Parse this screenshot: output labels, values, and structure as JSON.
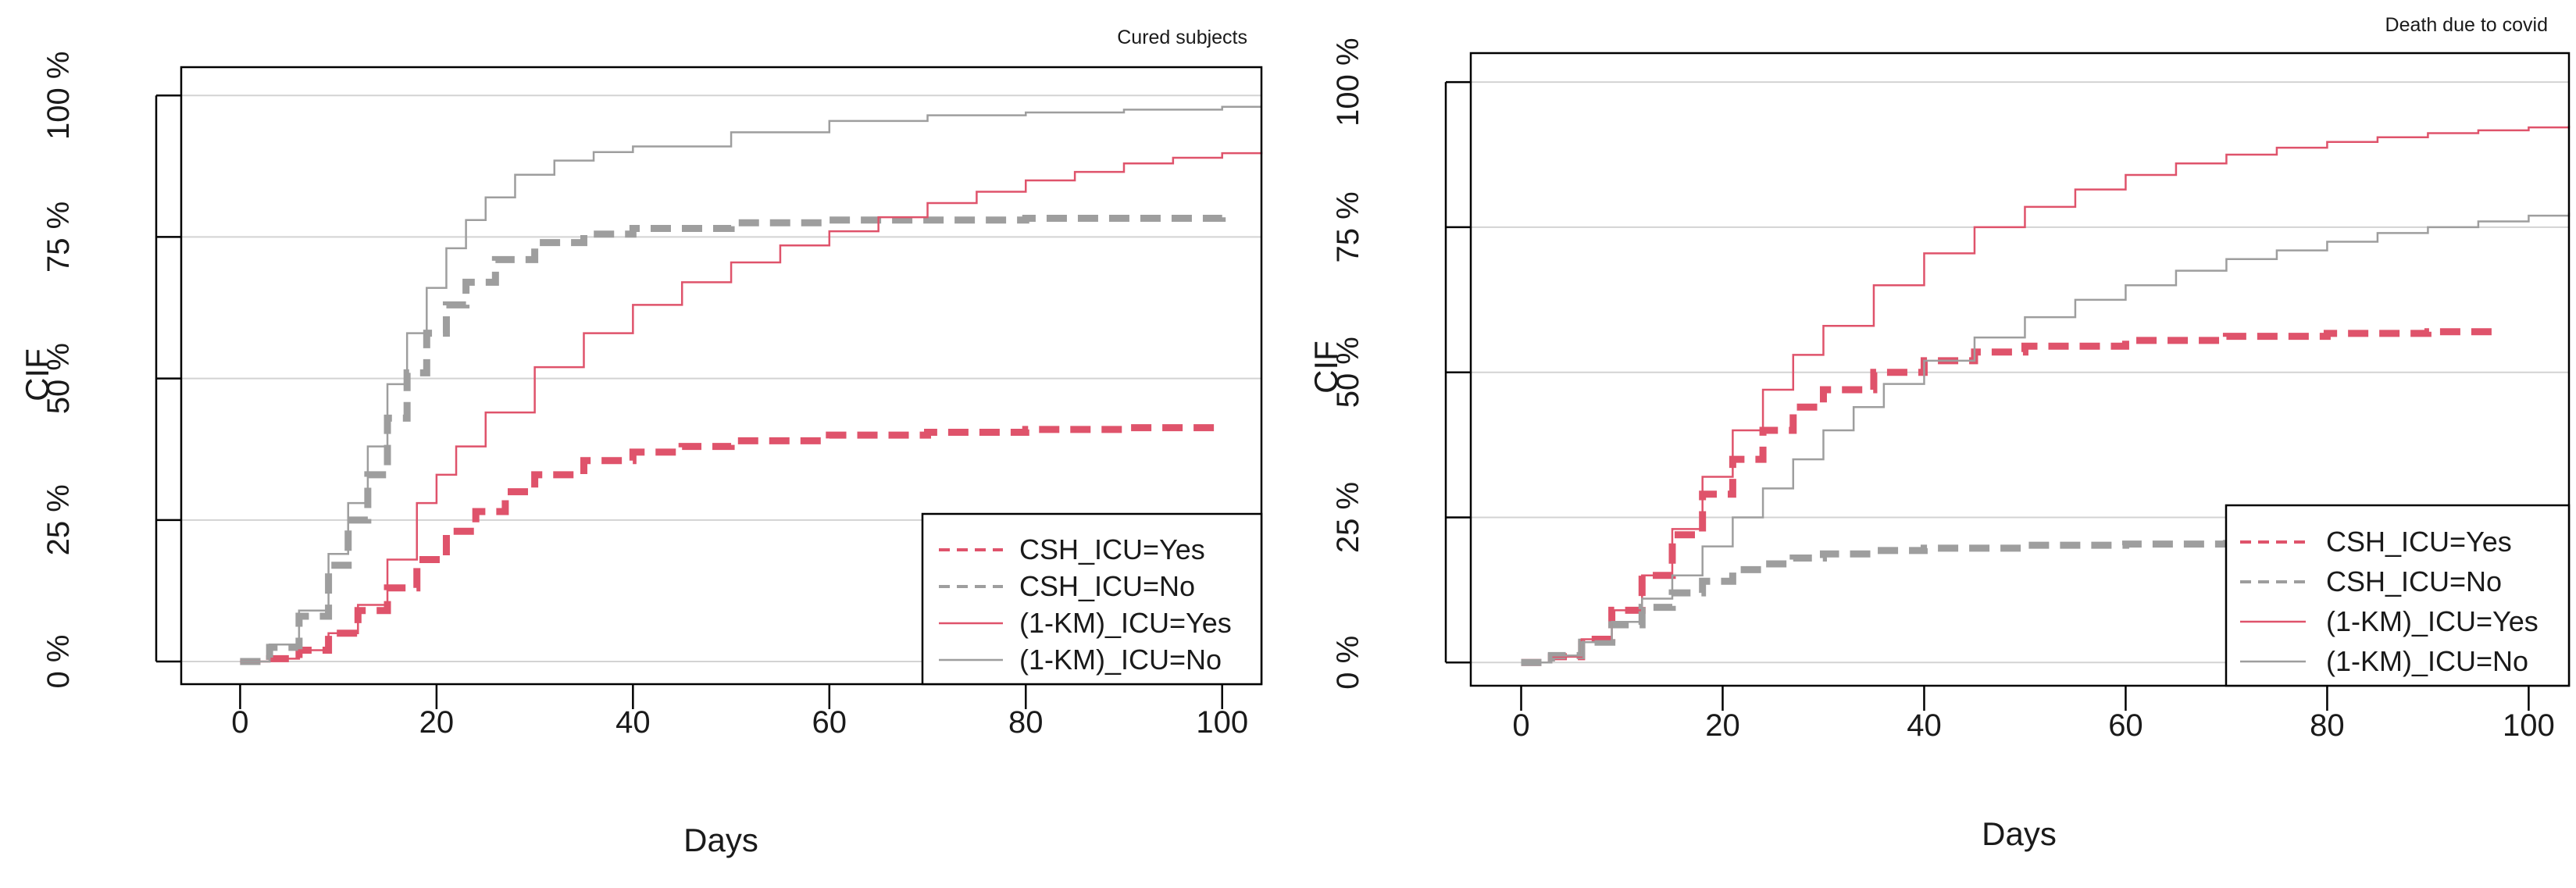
{
  "chart_data": [
    {
      "type": "line",
      "subtype": "step",
      "title": "Cured subjects",
      "xlabel": "Days",
      "ylabel": "CIF",
      "xlim": [
        -6,
        104
      ],
      "ylim": [
        -4,
        105
      ],
      "xticks": [
        0,
        20,
        40,
        60,
        80,
        100
      ],
      "xtick_labels": [
        "0",
        "20",
        "40",
        "60",
        "80",
        "100"
      ],
      "yticks": [
        0,
        25,
        50,
        75,
        100
      ],
      "ytick_labels": [
        "0 %",
        "25 %",
        "50 %",
        "75 %",
        "100 %"
      ],
      "grid": "horizontal",
      "legend_position": "bottom-right",
      "series": [
        {
          "name": "CSH_ICU=Yes",
          "color": "#DF536B",
          "style": "dashed",
          "x": [
            0,
            3,
            6,
            9,
            12,
            15,
            18,
            21,
            24,
            27,
            30,
            35,
            40,
            45,
            50,
            60,
            70,
            80,
            90,
            100
          ],
          "values": [
            0,
            0.5,
            2,
            5,
            9,
            13,
            18,
            23,
            26.5,
            30,
            33,
            35.5,
            37,
            38,
            39,
            40,
            40.5,
            41,
            41.3,
            41.5
          ]
        },
        {
          "name": "CSH_ICU=No",
          "color": "#9E9E9E",
          "style": "dashed",
          "x": [
            0,
            3,
            6,
            9,
            11,
            13,
            15,
            17,
            19,
            21,
            23,
            26,
            30,
            35,
            40,
            50,
            60,
            70,
            80,
            90,
            100
          ],
          "values": [
            0,
            2.5,
            8,
            17,
            25,
            33,
            43,
            51,
            58,
            63,
            67,
            71,
            74,
            75.5,
            76.5,
            77.5,
            78,
            78,
            78.3,
            78.3,
            78.5
          ]
        },
        {
          "name": "(1-KM)_ICU=Yes",
          "color": "#DF536B",
          "style": "solid",
          "x": [
            0,
            3,
            6,
            9,
            12,
            15,
            18,
            20,
            22,
            25,
            30,
            35,
            40,
            45,
            50,
            55,
            60,
            65,
            70,
            75,
            80,
            85,
            90,
            95,
            100,
            104
          ],
          "values": [
            0,
            0.5,
            2,
            5,
            10,
            18,
            28,
            33,
            38,
            44,
            52,
            58,
            63,
            67,
            70.5,
            73.5,
            76,
            78.5,
            81,
            83,
            85,
            86.5,
            88,
            89,
            89.8,
            90
          ]
        },
        {
          "name": "(1-KM)_ICU=No",
          "color": "#9E9E9E",
          "style": "solid",
          "x": [
            0,
            3,
            6,
            9,
            11,
            13,
            15,
            17,
            19,
            21,
            23,
            25,
            28,
            32,
            36,
            40,
            50,
            60,
            70,
            80,
            90,
            100,
            104
          ],
          "values": [
            0,
            3,
            9,
            19,
            28,
            38,
            49,
            58,
            66,
            73,
            78,
            82,
            86,
            88.5,
            90,
            91,
            93.5,
            95.5,
            96.5,
            97,
            97.5,
            98,
            98
          ]
        }
      ]
    },
    {
      "type": "line",
      "subtype": "step",
      "title": "Death due to covid",
      "xlabel": "Days",
      "ylabel": "CIF",
      "xlim": [
        -5,
        104
      ],
      "ylim": [
        -4,
        105
      ],
      "xticks": [
        0,
        20,
        40,
        60,
        80,
        100
      ],
      "xtick_labels": [
        "0",
        "20",
        "40",
        "60",
        "80",
        "100"
      ],
      "yticks": [
        0,
        25,
        50,
        75,
        100
      ],
      "ytick_labels": [
        "0 %",
        "25 %",
        "50 %",
        "75 %",
        "100 %"
      ],
      "grid": "horizontal",
      "legend_position": "bottom-right",
      "series": [
        {
          "name": "CSH_ICU=Yes",
          "color": "#DF536B",
          "style": "dashed",
          "x": [
            0,
            3,
            6,
            9,
            12,
            15,
            18,
            21,
            24,
            27,
            30,
            35,
            40,
            45,
            50,
            60,
            70,
            80,
            90,
            97
          ],
          "values": [
            0,
            1,
            4,
            9,
            15,
            22,
            29,
            35,
            40,
            44,
            47,
            50,
            52,
            53.5,
            54.5,
            55.5,
            56.2,
            56.7,
            57,
            57.2
          ]
        },
        {
          "name": "CSH_ICU=No",
          "color": "#9E9E9E",
          "style": "dashed",
          "x": [
            0,
            3,
            6,
            9,
            12,
            15,
            18,
            21,
            24,
            27,
            30,
            35,
            40,
            50,
            60,
            70,
            80,
            90,
            100
          ],
          "values": [
            0,
            1.2,
            3.5,
            6.5,
            9.5,
            12,
            14,
            16,
            17,
            18,
            18.7,
            19.3,
            19.7,
            20.2,
            20.4,
            20.5,
            20.6,
            20.7,
            20.8
          ]
        },
        {
          "name": "(1-KM)_ICU=Yes",
          "color": "#DF536B",
          "style": "solid",
          "x": [
            0,
            3,
            6,
            9,
            12,
            15,
            18,
            21,
            24,
            27,
            30,
            35,
            40,
            45,
            50,
            55,
            60,
            65,
            70,
            75,
            80,
            85,
            90,
            95,
            100,
            104
          ],
          "values": [
            0,
            1,
            4,
            9,
            15,
            23,
            32,
            40,
            47,
            53,
            58,
            65,
            70.5,
            75,
            78.5,
            81.5,
            84,
            86,
            87.5,
            88.7,
            89.7,
            90.5,
            91.2,
            91.7,
            92.2,
            92.5
          ]
        },
        {
          "name": "(1-KM)_ICU=No",
          "color": "#9E9E9E",
          "style": "solid",
          "x": [
            0,
            3,
            6,
            9,
            12,
            15,
            18,
            21,
            24,
            27,
            30,
            33,
            36,
            40,
            45,
            50,
            55,
            60,
            65,
            70,
            75,
            80,
            85,
            90,
            95,
            100,
            104
          ],
          "values": [
            0,
            1.2,
            3.5,
            7,
            11,
            15,
            20,
            25,
            30,
            35,
            40,
            44,
            48,
            52,
            56,
            59.5,
            62.5,
            65,
            67.5,
            69.5,
            71,
            72.5,
            74,
            75,
            76,
            77,
            77.5
          ]
        }
      ]
    }
  ]
}
